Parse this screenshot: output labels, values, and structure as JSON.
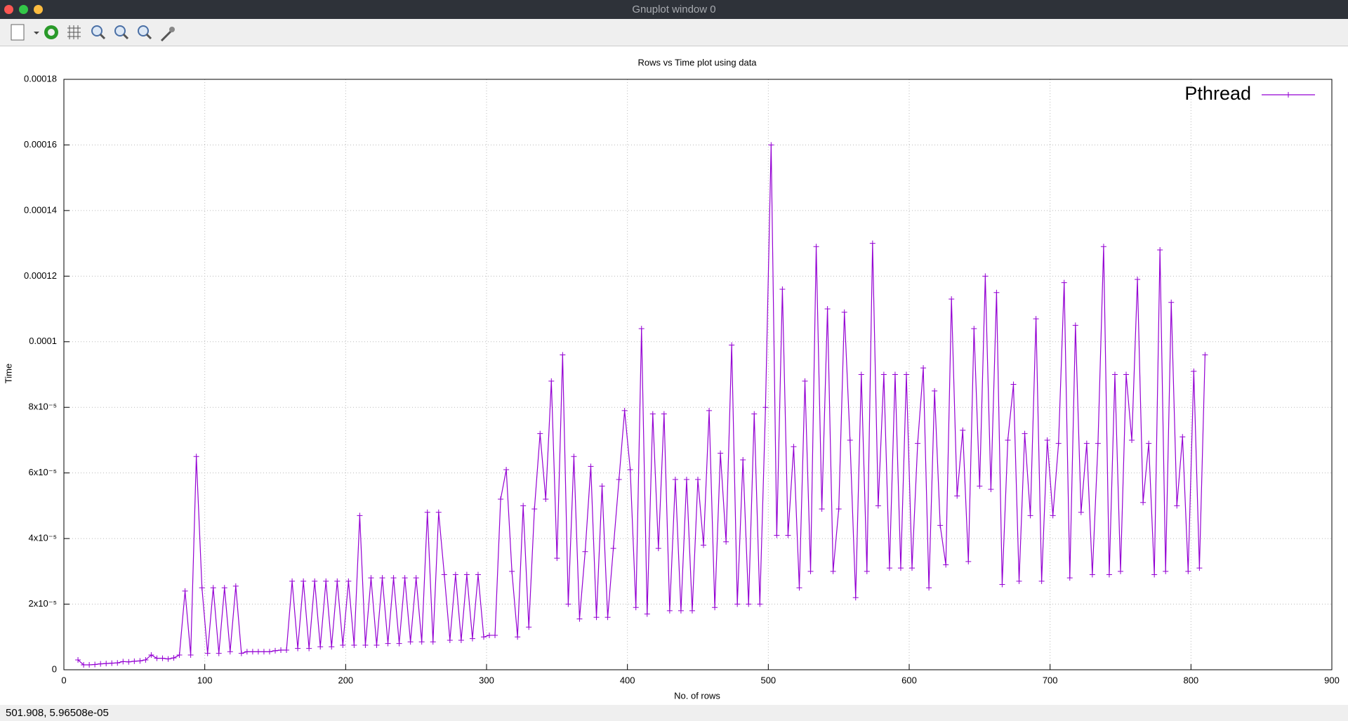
{
  "window": {
    "title": "Gnuplot window 0"
  },
  "statusbar": {
    "coords": "501.908, 5.96508e-05"
  },
  "chart_data": {
    "type": "line",
    "title": "Rows vs Time plot using data",
    "x_label": "No. of rows",
    "y_label": "Time",
    "xlim": [
      0,
      900
    ],
    "xticks": [
      0,
      100,
      200,
      300,
      400,
      500,
      600,
      700,
      800,
      900
    ],
    "ylim": [
      0,
      0.00018
    ],
    "yticks": [
      0,
      {
        "value": 2e-05,
        "label": "2x10⁻⁵"
      },
      {
        "value": 4e-05,
        "label": "4x10⁻⁵"
      },
      {
        "value": 6e-05,
        "label": "6x10⁻⁵"
      },
      {
        "value": 8e-05,
        "label": "8x10⁻⁵"
      },
      0.0001,
      0.00012,
      0.00014,
      0.00016,
      0.00018
    ],
    "grid": true,
    "legend": "top-right",
    "x": [
      10,
      14,
      18,
      22,
      26,
      30,
      34,
      38,
      42,
      46,
      50,
      54,
      58,
      62,
      66,
      70,
      74,
      78,
      82,
      86,
      90,
      94,
      98,
      102,
      106,
      110,
      114,
      118,
      122,
      126,
      130,
      134,
      138,
      142,
      146,
      150,
      154,
      158,
      162,
      166,
      170,
      174,
      178,
      182,
      186,
      190,
      194,
      198,
      202,
      206,
      210,
      214,
      218,
      222,
      226,
      230,
      234,
      238,
      242,
      246,
      250,
      254,
      258,
      262,
      266,
      270,
      274,
      278,
      282,
      286,
      290,
      294,
      298,
      302,
      306,
      310,
      314,
      318,
      322,
      326,
      330,
      334,
      338,
      342,
      346,
      350,
      354,
      358,
      362,
      366,
      370,
      374,
      378,
      382,
      386,
      390,
      394,
      398,
      402,
      406,
      410,
      414,
      418,
      422,
      426,
      430,
      434,
      438,
      442,
      446,
      450,
      454,
      458,
      462,
      466,
      470,
      474,
      478,
      482,
      486,
      490,
      494,
      498,
      502,
      506,
      510,
      514,
      518,
      522,
      526,
      530,
      534,
      538,
      542,
      546,
      550,
      554,
      558,
      562,
      566,
      570,
      574,
      578,
      582,
      586,
      590,
      594,
      598,
      602,
      606,
      610,
      614,
      618,
      622,
      626,
      630,
      634,
      638,
      642,
      646,
      650,
      654,
      658,
      662,
      666,
      670,
      674,
      678,
      682,
      686,
      690,
      694,
      698,
      702,
      706,
      710,
      714,
      718,
      722,
      726,
      730,
      734,
      738,
      742,
      746,
      750,
      754,
      758,
      762,
      766,
      770,
      774,
      778,
      782,
      786,
      790,
      794,
      798,
      802,
      806,
      810
    ],
    "series": [
      {
        "name": "Pthread",
        "color": "#9400d3",
        "values": [
          3e-06,
          1.5e-06,
          1.5e-06,
          1.6e-06,
          1.8e-06,
          1.9e-06,
          2e-06,
          2.1e-06,
          2.5e-06,
          2.4e-06,
          2.6e-06,
          2.7e-06,
          3e-06,
          4.5e-06,
          3.5e-06,
          3.5e-06,
          3.3e-06,
          3.6e-06,
          4.5e-06,
          2.4e-05,
          4.5e-06,
          6.5e-05,
          2.5e-05,
          5e-06,
          2.5e-05,
          5e-06,
          2.5e-05,
          5.5e-06,
          2.55e-05,
          5e-06,
          5.5e-06,
          5.5e-06,
          5.5e-06,
          5.5e-06,
          5.5e-06,
          5.8e-06,
          6e-06,
          6e-06,
          2.7e-05,
          6.5e-06,
          2.7e-05,
          6.5e-06,
          2.7e-05,
          7e-06,
          2.7e-05,
          7e-06,
          2.7e-05,
          7.5e-06,
          2.7e-05,
          7.5e-06,
          4.7e-05,
          7.5e-06,
          2.8e-05,
          7.5e-06,
          2.8e-05,
          8e-06,
          2.8e-05,
          8e-06,
          2.8e-05,
          8.5e-06,
          2.8e-05,
          8.5e-06,
          4.8e-05,
          8.5e-06,
          4.8e-05,
          2.9e-05,
          9e-06,
          2.9e-05,
          9e-06,
          2.9e-05,
          9.5e-06,
          2.9e-05,
          1e-05,
          1.05e-05,
          1.05e-05,
          5.2e-05,
          6.1e-05,
          3e-05,
          1e-05,
          5e-05,
          1.3e-05,
          4.9e-05,
          7.2e-05,
          5.2e-05,
          8.8e-05,
          3.4e-05,
          9.6e-05,
          2e-05,
          6.5e-05,
          1.55e-05,
          3.6e-05,
          6.2e-05,
          1.6e-05,
          5.6e-05,
          1.6e-05,
          3.7e-05,
          5.8e-05,
          7.9e-05,
          6.1e-05,
          1.9e-05,
          0.000104,
          1.7e-05,
          7.8e-05,
          3.7e-05,
          7.8e-05,
          1.8e-05,
          5.8e-05,
          1.8e-05,
          5.8e-05,
          1.8e-05,
          5.8e-05,
          3.8e-05,
          7.9e-05,
          1.9e-05,
          6.6e-05,
          3.9e-05,
          9.9e-05,
          2e-05,
          6.4e-05,
          2e-05,
          7.8e-05,
          2e-05,
          8e-05,
          0.00016,
          4.1e-05,
          0.000116,
          4.1e-05,
          6.8e-05,
          2.5e-05,
          8.8e-05,
          3e-05,
          0.000129,
          4.9e-05,
          0.00011,
          3e-05,
          4.9e-05,
          0.000109,
          7e-05,
          2.2e-05,
          9e-05,
          3e-05,
          0.00013,
          5e-05,
          9e-05,
          3.1e-05,
          9e-05,
          3.1e-05,
          9e-05,
          3.1e-05,
          6.9e-05,
          9.2e-05,
          2.5e-05,
          8.5e-05,
          4.4e-05,
          3.2e-05,
          0.000113,
          5.3e-05,
          7.3e-05,
          3.3e-05,
          0.000104,
          5.6e-05,
          0.00012,
          5.5e-05,
          0.000115,
          2.6e-05,
          7e-05,
          8.7e-05,
          2.7e-05,
          7.2e-05,
          4.7e-05,
          0.000107,
          2.7e-05,
          7e-05,
          4.7e-05,
          6.9e-05,
          0.000118,
          2.8e-05,
          0.000105,
          4.8e-05,
          6.9e-05,
          2.9e-05,
          6.9e-05,
          0.000129,
          2.9e-05,
          9e-05,
          3e-05,
          9e-05,
          7e-05,
          0.000119,
          5.1e-05,
          6.9e-05,
          2.9e-05,
          0.000128,
          3e-05,
          0.000112,
          5e-05,
          7.1e-05,
          3e-05,
          9.1e-05,
          3.1e-05,
          9.6e-05
        ]
      }
    ]
  }
}
